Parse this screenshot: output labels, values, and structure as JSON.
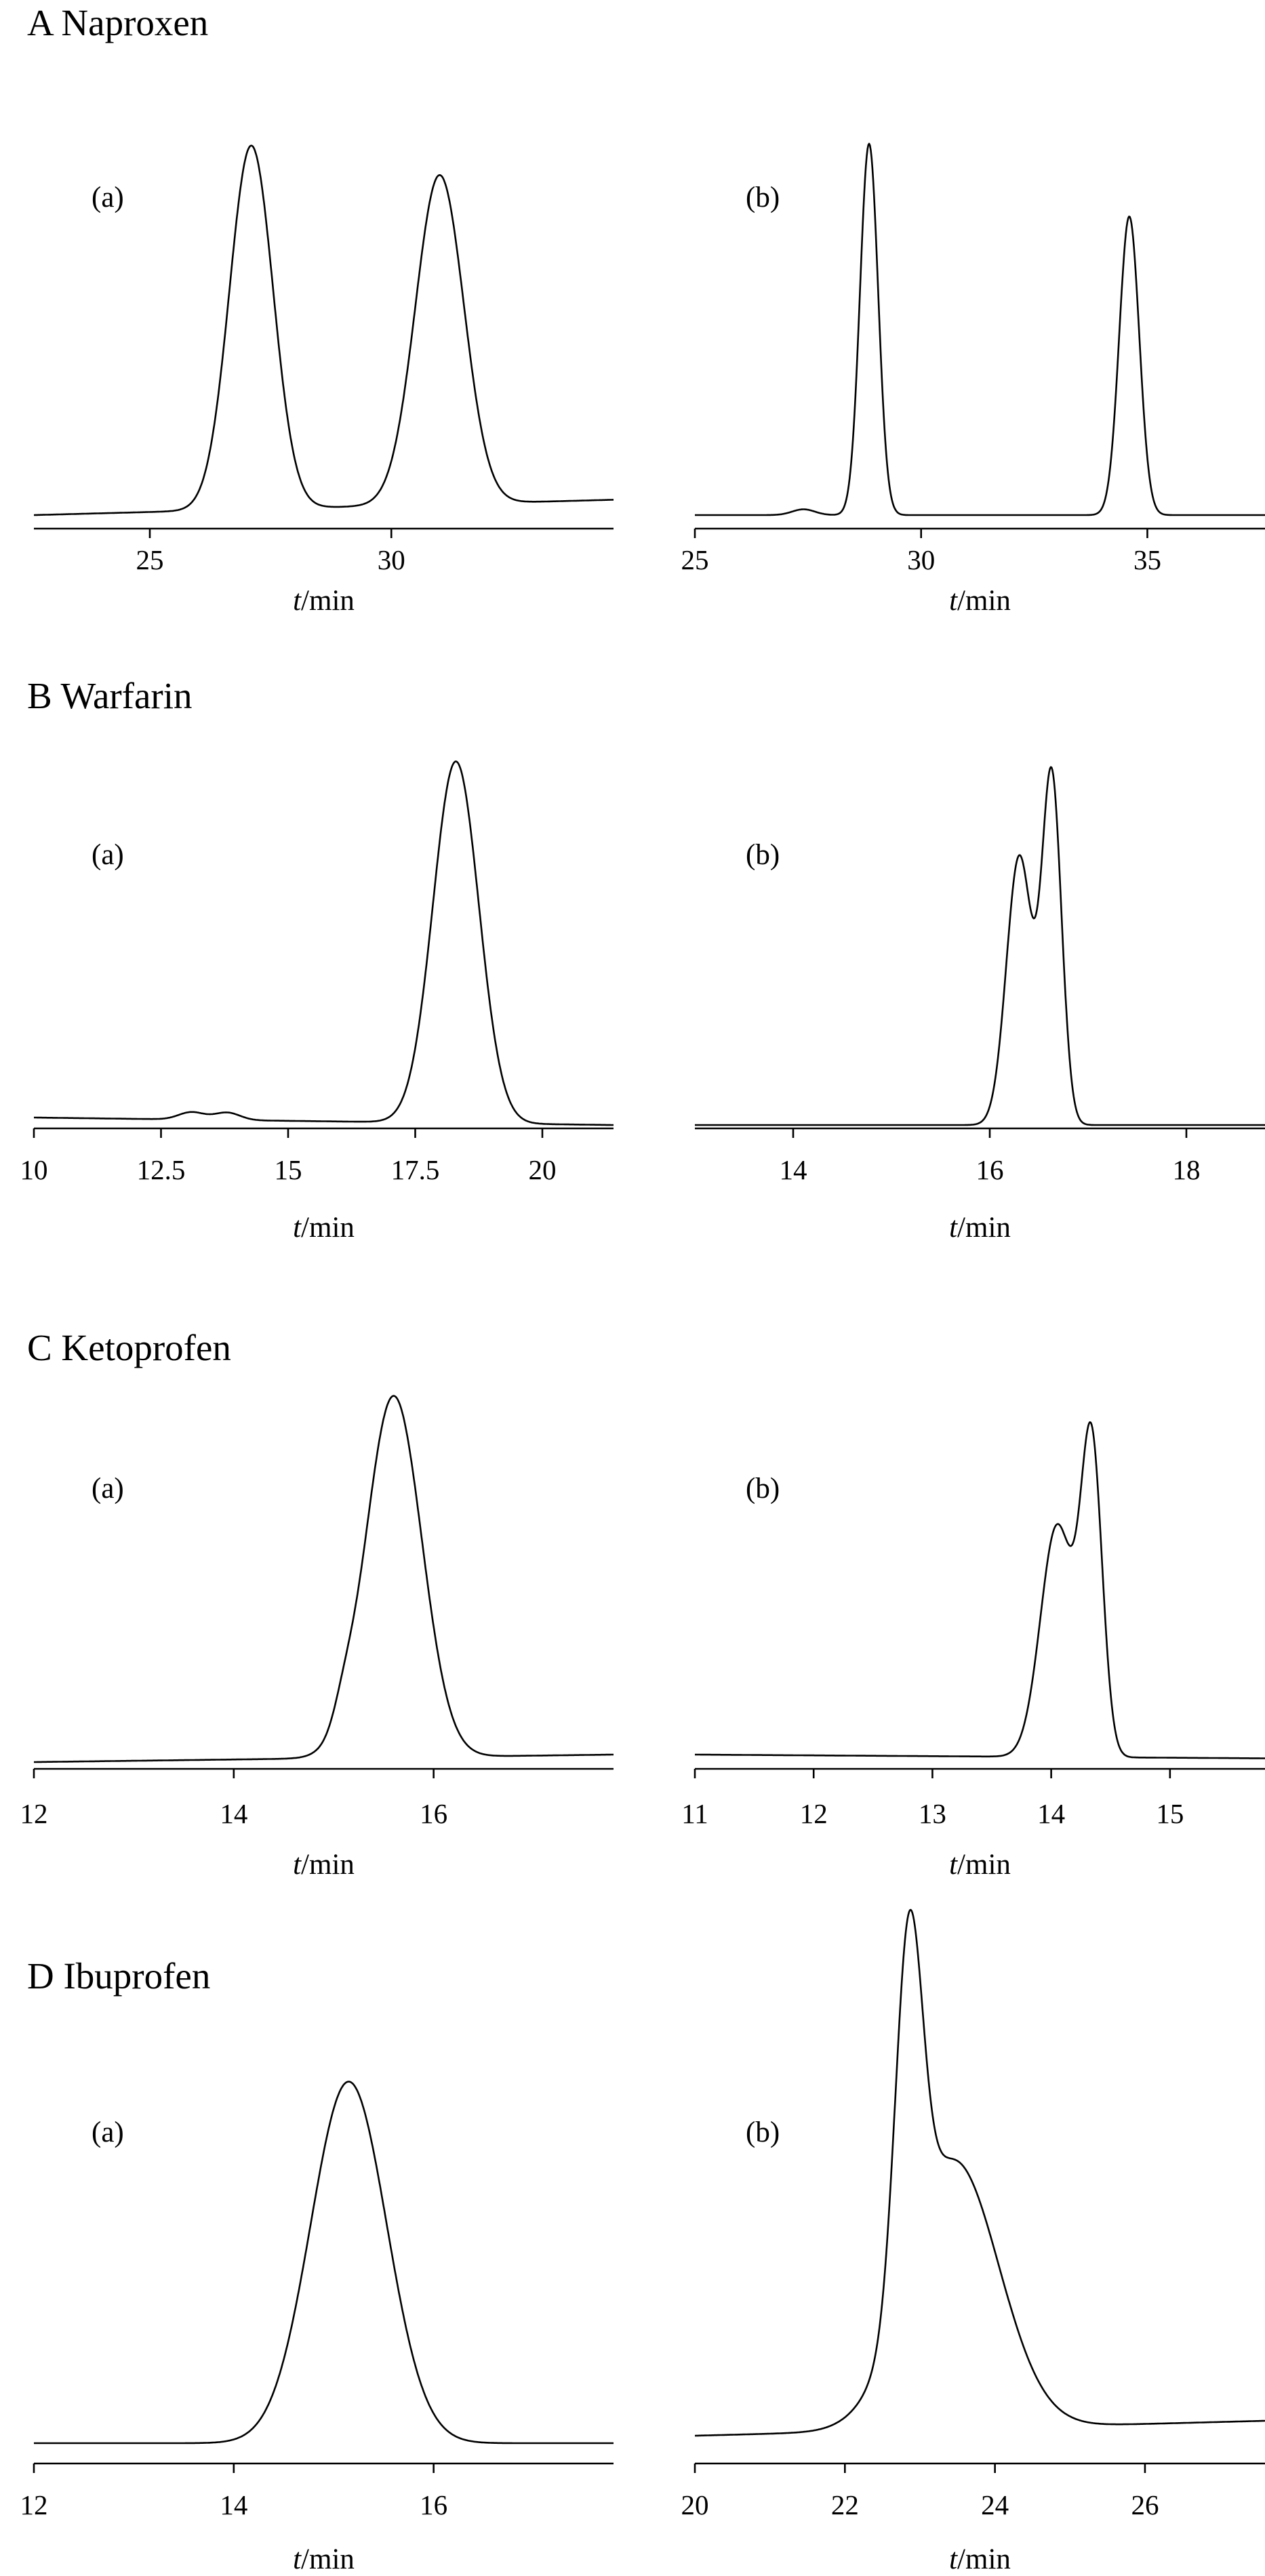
{
  "chart_data": [
    {
      "type": "line",
      "group": "A",
      "title": "A  Naproxen",
      "panel": "(a)",
      "xlabel_var": "t",
      "xlabel_unit": "/min",
      "xlim": [
        22.6,
        34.6
      ],
      "ticks": [
        25,
        30
      ],
      "peaks": [
        {
          "center": 27.1,
          "height": 0.95,
          "sigma": 0.45
        },
        {
          "center": 31.0,
          "height": 0.86,
          "sigma": 0.5
        }
      ],
      "baseline": [
        0.0,
        0.04
      ]
    },
    {
      "type": "line",
      "group": "A",
      "title": "",
      "panel": "(b)",
      "xlabel_var": "t",
      "xlabel_unit": "/min",
      "xlim": [
        25.0,
        37.6
      ],
      "ticks": [
        25,
        30,
        35
      ],
      "peaks": [
        {
          "center": 28.85,
          "height": 0.97,
          "sigma": 0.2
        },
        {
          "center": 34.6,
          "height": 0.78,
          "sigma": 0.22
        },
        {
          "center": 27.4,
          "height": 0.015,
          "sigma": 0.25
        }
      ],
      "baseline": [
        0.0,
        0.0
      ]
    },
    {
      "type": "line",
      "group": "B",
      "title": "B  Warfarin",
      "panel": "(a)",
      "xlabel_var": "t",
      "xlabel_unit": "/min",
      "xlim": [
        10.0,
        21.4
      ],
      "ticks": [
        10,
        12.5,
        15,
        17.5,
        20
      ],
      "peaks": [
        {
          "center": 18.3,
          "height": 0.97,
          "sigma": 0.45
        },
        {
          "center": 13.1,
          "height": 0.02,
          "sigma": 0.25
        },
        {
          "center": 13.8,
          "height": 0.02,
          "sigma": 0.25
        }
      ],
      "baseline": [
        0.02,
        0.0
      ]
    },
    {
      "type": "line",
      "group": "B",
      "title": "",
      "panel": "(b)",
      "xlabel_var": "t",
      "xlabel_unit": "/min",
      "xlim": [
        13.0,
        18.8
      ],
      "ticks": [
        14,
        16,
        18
      ],
      "peaks": [
        {
          "center": 16.3,
          "height": 0.72,
          "sigma": 0.13
        },
        {
          "center": 16.63,
          "height": 0.93,
          "sigma": 0.1
        }
      ],
      "baseline": [
        0.0,
        0.0
      ]
    },
    {
      "type": "line",
      "group": "C",
      "title": "C  Ketoprofen",
      "panel": "(a)",
      "xlabel_var": "t",
      "xlabel_unit": "/min",
      "xlim": [
        12.0,
        17.8
      ],
      "ticks": [
        12,
        14,
        16
      ],
      "peaks": [
        {
          "center": 15.6,
          "height": 0.97,
          "sigma": 0.28
        },
        {
          "center": 15.1,
          "height": 0.05,
          "sigma": 0.1
        }
      ],
      "baseline": [
        0.0,
        0.02
      ]
    },
    {
      "type": "line",
      "group": "C",
      "title": "",
      "panel": "(b)",
      "xlabel_var": "t",
      "xlabel_unit": "/min",
      "xlim": [
        11.0,
        15.8
      ],
      "ticks": [
        11,
        12,
        13,
        14,
        15
      ],
      "peaks": [
        {
          "center": 14.05,
          "height": 0.62,
          "sigma": 0.14
        },
        {
          "center": 14.34,
          "height": 0.82,
          "sigma": 0.09
        }
      ],
      "baseline": [
        0.02,
        0.01
      ]
    },
    {
      "type": "line",
      "group": "D",
      "title": "D Ibuprofen",
      "panel": "(a)",
      "xlabel_var": "t",
      "xlabel_unit": "/min",
      "xlim": [
        12.0,
        17.8
      ],
      "ticks": [
        12,
        14,
        16
      ],
      "peaks": [
        {
          "center": 15.15,
          "height": 0.97,
          "sigma": 0.38
        }
      ],
      "baseline": [
        0.0,
        0.0
      ]
    },
    {
      "type": "line",
      "group": "D",
      "title": "",
      "panel": "(b)",
      "xlabel_var": "t",
      "xlabel_unit": "/min",
      "xlim": [
        20.0,
        27.6
      ],
      "ticks": [
        20,
        22,
        24,
        26
      ],
      "peaks": [
        {
          "center": 22.85,
          "height": 0.95,
          "sigma": 0.18
        },
        {
          "center": 23.45,
          "height": 0.72,
          "sigma": 0.6
        }
      ],
      "baseline": [
        0.02,
        0.06
      ]
    }
  ]
}
